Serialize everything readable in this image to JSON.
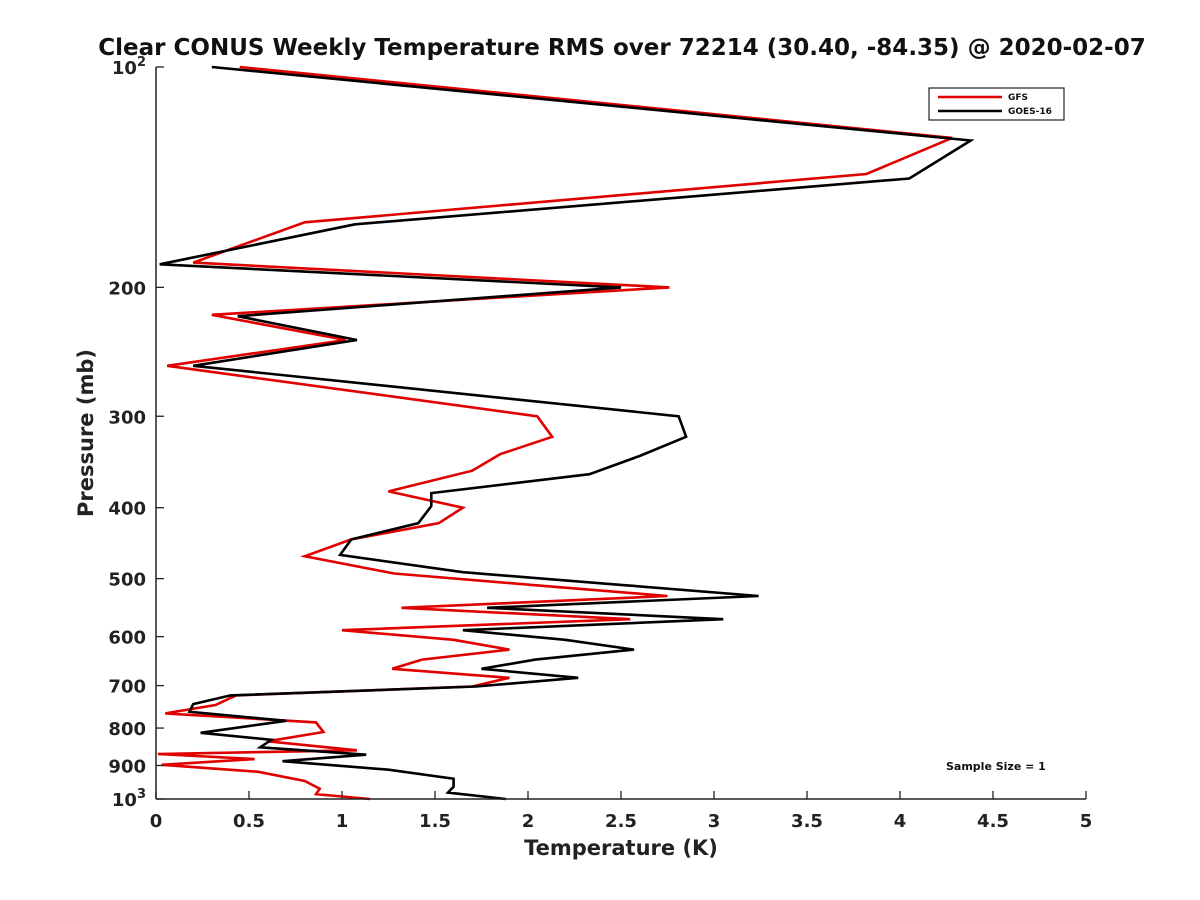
{
  "chart_data": {
    "type": "line",
    "title": "Clear CONUS Weekly Temperature RMS over 72214 (30.40, -84.35) @ 2020-02-07",
    "xlabel": "Temperature (K)",
    "ylabel": "Pressure (mb)",
    "xlim": [
      0,
      5
    ],
    "ylim": [
      100,
      1000
    ],
    "y_scale": "log",
    "y_reversed": true,
    "x_ticks": [
      0,
      0.5,
      1,
      1.5,
      2,
      2.5,
      3,
      3.5,
      4,
      4.5,
      5
    ],
    "x_tick_labels": [
      "0",
      "0.5",
      "1",
      "1.5",
      "2",
      "2.5",
      "3",
      "3.5",
      "4",
      "4.5",
      "5"
    ],
    "y_ticks": [
      {
        "value": 100,
        "label": "10",
        "sup": "2"
      },
      {
        "value": 200,
        "label": "200",
        "sup": ""
      },
      {
        "value": 300,
        "label": "300",
        "sup": ""
      },
      {
        "value": 400,
        "label": "400",
        "sup": ""
      },
      {
        "value": 500,
        "label": "500",
        "sup": ""
      },
      {
        "value": 600,
        "label": "600",
        "sup": ""
      },
      {
        "value": 700,
        "label": "700",
        "sup": ""
      },
      {
        "value": 800,
        "label": "800",
        "sup": ""
      },
      {
        "value": 900,
        "label": "900",
        "sup": ""
      },
      {
        "value": 1000,
        "label": "10",
        "sup": "3"
      }
    ],
    "legend_position": "top-right",
    "annotation": "Sample Size = 1",
    "series": [
      {
        "name": "GFS",
        "color": "#e00000",
        "points": [
          [
            0.45,
            100
          ],
          [
            4.28,
            125
          ],
          [
            3.82,
            140
          ],
          [
            0.8,
            163
          ],
          [
            0.2,
            185
          ],
          [
            2.76,
            200
          ],
          [
            0.3,
            218
          ],
          [
            1.02,
            236
          ],
          [
            0.06,
            256
          ],
          [
            2.05,
            300
          ],
          [
            2.13,
            320
          ],
          [
            1.85,
            338
          ],
          [
            1.7,
            356
          ],
          [
            1.25,
            380
          ],
          [
            1.65,
            400
          ],
          [
            1.52,
            420
          ],
          [
            1.05,
            442
          ],
          [
            0.8,
            466
          ],
          [
            1.28,
            492
          ],
          [
            2.02,
            510
          ],
          [
            2.75,
            528
          ],
          [
            1.32,
            548
          ],
          [
            2.55,
            568
          ],
          [
            1.0,
            588
          ],
          [
            1.6,
            606
          ],
          [
            1.9,
            625
          ],
          [
            1.43,
            645
          ],
          [
            1.27,
            664
          ],
          [
            1.9,
            683
          ],
          [
            1.7,
            702
          ],
          [
            0.43,
            722
          ],
          [
            0.32,
            744
          ],
          [
            0.05,
            764
          ],
          [
            0.86,
            786
          ],
          [
            0.9,
            810
          ],
          [
            0.6,
            834
          ],
          [
            1.08,
            858
          ],
          [
            0.01,
            868
          ],
          [
            0.53,
            882
          ],
          [
            0.03,
            898
          ],
          [
            0.55,
            918
          ],
          [
            0.8,
            945
          ],
          [
            0.88,
            968
          ],
          [
            0.86,
            985
          ],
          [
            1.15,
            1000
          ]
        ]
      },
      {
        "name": "GOES-16",
        "color": "#000000",
        "points": [
          [
            0.3,
            100
          ],
          [
            4.38,
            126
          ],
          [
            4.05,
            142
          ],
          [
            1.07,
            164
          ],
          [
            0.02,
            186
          ],
          [
            2.5,
            200
          ],
          [
            0.44,
            219
          ],
          [
            1.08,
            236
          ],
          [
            0.2,
            256
          ],
          [
            2.81,
            300
          ],
          [
            2.85,
            320
          ],
          [
            2.6,
            340
          ],
          [
            2.33,
            360
          ],
          [
            1.48,
            382
          ],
          [
            1.48,
            398
          ],
          [
            1.41,
            420
          ],
          [
            1.05,
            442
          ],
          [
            0.99,
            464
          ],
          [
            1.65,
            490
          ],
          [
            2.5,
            510
          ],
          [
            3.24,
            528
          ],
          [
            1.78,
            548
          ],
          [
            3.05,
            568
          ],
          [
            1.65,
            588
          ],
          [
            2.2,
            606
          ],
          [
            2.57,
            625
          ],
          [
            2.04,
            645
          ],
          [
            1.75,
            664
          ],
          [
            2.27,
            683
          ],
          [
            1.72,
            702
          ],
          [
            0.4,
            722
          ],
          [
            0.2,
            742
          ],
          [
            0.18,
            760
          ],
          [
            0.7,
            782
          ],
          [
            0.24,
            812
          ],
          [
            0.62,
            830
          ],
          [
            0.56,
            850
          ],
          [
            1.13,
            870
          ],
          [
            0.68,
            888
          ],
          [
            1.25,
            912
          ],
          [
            1.6,
            938
          ],
          [
            1.6,
            962
          ],
          [
            1.57,
            980
          ],
          [
            1.88,
            1000
          ]
        ]
      }
    ]
  }
}
